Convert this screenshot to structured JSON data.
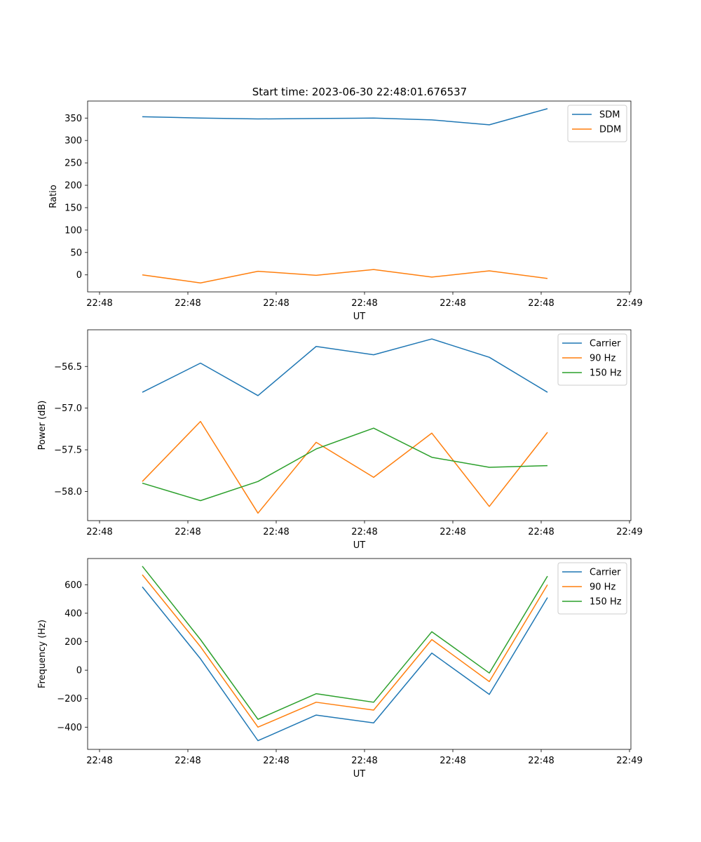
{
  "figure_title": "Start time: 2023-06-30 22:48:01.676537",
  "chart_data": [
    {
      "type": "line",
      "title": "Start time: 2023-06-30 22:48:01.676537",
      "xlabel": "UT",
      "ylabel": "Ratio",
      "x_tick_labels": [
        "22:48",
        "22:48",
        "22:48",
        "22:48",
        "22:48",
        "22:48",
        "22:49"
      ],
      "ylim": [
        -38,
        388
      ],
      "y_ticks": [
        0,
        50,
        100,
        150,
        200,
        250,
        300,
        350
      ],
      "legend_position": "upper right",
      "series": [
        {
          "name": "SDM",
          "color": "#1f77b4",
          "values": [
            353,
            350,
            348,
            349,
            350,
            346,
            335,
            371
          ]
        },
        {
          "name": "DDM",
          "color": "#ff7f0e",
          "values": [
            0,
            -18,
            8,
            -1,
            12,
            -5,
            9,
            -8
          ]
        }
      ]
    },
    {
      "type": "line",
      "xlabel": "UT",
      "ylabel": "Power (dB)",
      "x_tick_labels": [
        "22:48",
        "22:48",
        "22:48",
        "22:48",
        "22:48",
        "22:48",
        "22:49"
      ],
      "ylim": [
        -58.35,
        -56.06
      ],
      "y_ticks": [
        -56.5,
        -57.0,
        -57.5,
        -58.0
      ],
      "y_tick_labels": [
        "−56.5",
        "−57.0",
        "−57.5",
        "−58.0"
      ],
      "legend_position": "upper right",
      "series": [
        {
          "name": "Carrier",
          "color": "#1f77b4",
          "values": [
            -56.81,
            -56.46,
            -56.85,
            -56.26,
            -56.36,
            -56.17,
            -56.39,
            -56.81
          ]
        },
        {
          "name": "90 Hz",
          "color": "#ff7f0e",
          "values": [
            -57.88,
            -57.16,
            -58.26,
            -57.41,
            -57.83,
            -57.3,
            -58.18,
            -57.29
          ]
        },
        {
          "name": "150 Hz",
          "color": "#2ca02c",
          "values": [
            -57.9,
            -58.11,
            -57.88,
            -57.49,
            -57.24,
            -57.59,
            -57.71,
            -57.69
          ]
        }
      ]
    },
    {
      "type": "line",
      "xlabel": "UT",
      "ylabel": "Frequency (Hz)",
      "x_tick_labels": [
        "22:48",
        "22:48",
        "22:48",
        "22:48",
        "22:48",
        "22:48",
        "22:49"
      ],
      "ylim": [
        -556,
        784
      ],
      "y_ticks": [
        600,
        400,
        200,
        0,
        -200,
        -400
      ],
      "y_tick_labels": [
        "600",
        "400",
        "200",
        "0",
        "−200",
        "−400"
      ],
      "legend_position": "upper right",
      "series": [
        {
          "name": "Carrier",
          "color": "#1f77b4",
          "values": [
            585,
            80,
            -495,
            -315,
            -370,
            120,
            -170,
            510
          ]
        },
        {
          "name": "90 Hz",
          "color": "#ff7f0e",
          "values": [
            670,
            165,
            -400,
            -225,
            -280,
            215,
            -80,
            600
          ]
        },
        {
          "name": "150 Hz",
          "color": "#2ca02c",
          "values": [
            730,
            215,
            -345,
            -165,
            -225,
            270,
            -20,
            660
          ]
        }
      ]
    }
  ]
}
